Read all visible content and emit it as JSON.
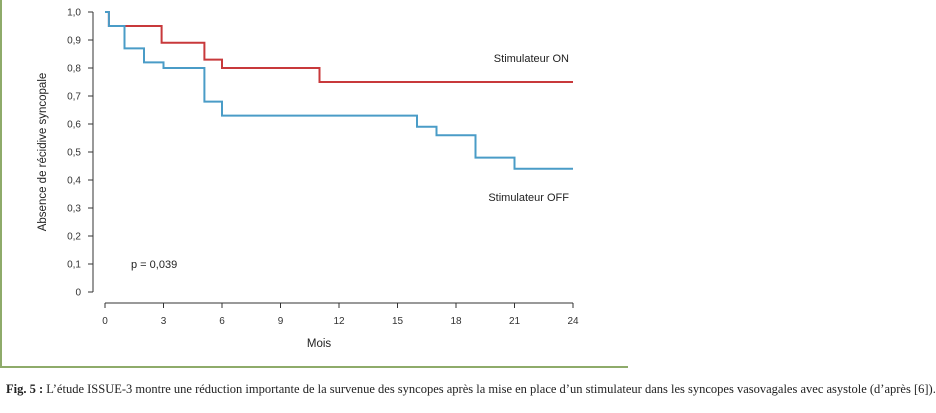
{
  "chart_data": {
    "type": "line",
    "step": true,
    "xlabel": "Mois",
    "ylabel": "Absence de récidive syncopale",
    "xlim": [
      0,
      24
    ],
    "ylim": [
      0,
      1.0
    ],
    "x_ticks": [
      0,
      3,
      6,
      9,
      12,
      15,
      18,
      21,
      24
    ],
    "x_tick_labels": [
      "0",
      "3",
      "6",
      "9",
      "12",
      "15",
      "18",
      "21",
      "24"
    ],
    "y_ticks": [
      0,
      0.1,
      0.2,
      0.3,
      0.4,
      0.5,
      0.6,
      0.7,
      0.8,
      0.9,
      1.0
    ],
    "y_tick_labels": [
      "0",
      "0,1",
      "0,2",
      "0,3",
      "0,4",
      "0,5",
      "0,6",
      "0,7",
      "0,8",
      "0,9",
      "1,0"
    ],
    "annotation": "p = 0,039",
    "series": [
      {
        "name": "Stimulateur ON",
        "color": "#c8393b",
        "points": [
          [
            0,
            1.0
          ],
          [
            0.2,
            1.0
          ],
          [
            0.2,
            0.95
          ],
          [
            2.9,
            0.95
          ],
          [
            2.9,
            0.89
          ],
          [
            5.1,
            0.89
          ],
          [
            5.1,
            0.83
          ],
          [
            6.0,
            0.83
          ],
          [
            6.0,
            0.8
          ],
          [
            11.0,
            0.8
          ],
          [
            11.0,
            0.75
          ],
          [
            24,
            0.75
          ]
        ]
      },
      {
        "name": "Stimulateur OFF",
        "color": "#4a9cc7",
        "points": [
          [
            0,
            1.0
          ],
          [
            0.2,
            1.0
          ],
          [
            0.2,
            0.95
          ],
          [
            1.0,
            0.95
          ],
          [
            1.0,
            0.87
          ],
          [
            2.0,
            0.87
          ],
          [
            2.0,
            0.82
          ],
          [
            3.0,
            0.82
          ],
          [
            3.0,
            0.8
          ],
          [
            5.1,
            0.8
          ],
          [
            5.1,
            0.68
          ],
          [
            6.0,
            0.68
          ],
          [
            6.0,
            0.63
          ],
          [
            16.0,
            0.63
          ],
          [
            16.0,
            0.59
          ],
          [
            17.0,
            0.59
          ],
          [
            17.0,
            0.56
          ],
          [
            19.0,
            0.56
          ],
          [
            19.0,
            0.48
          ],
          [
            21.0,
            0.48
          ],
          [
            21.0,
            0.44
          ],
          [
            24,
            0.44
          ]
        ]
      }
    ]
  },
  "caption": {
    "label": "Fig. 5 :",
    "text": " L’étude ISSUE-3 montre une réduction importante de la survenue des syncopes après la mise en place d’un stimulateur dans les syncopes vasovagales avec asystole (d’après [6])."
  }
}
